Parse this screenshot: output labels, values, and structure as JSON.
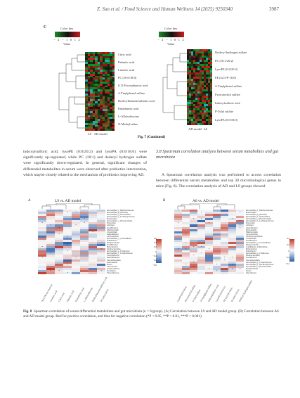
{
  "header": {
    "journal": "Z. Sun et al. / Food Science and Human Wellness 14 (2025) 9250340",
    "page": "3987"
  },
  "fig7": {
    "panel_letter": "C",
    "left": {
      "colorkey_title": "Color key",
      "colorkey_ticks": [
        "−2",
        "−1",
        "0",
        "1",
        "2"
      ],
      "colorkey_axis": "Value",
      "rows": [
        "Citric acid",
        "Palmitic acid",
        "Linoleic acid",
        "PC (16:0/18:0)",
        "8,11-Eicosadiynoic acid",
        "4-Vinylphenol sulfate",
        "Dodecylbenzenesulfonic acid",
        "Pantothenic acid",
        "L-Alloisoleucine",
        "N-Methylvaline"
      ],
      "groups": [
        "L9",
        "AD model"
      ]
    },
    "right": {
      "colorkey_title": "Color key",
      "colorkey_ticks": [
        "−2",
        "−1",
        "0",
        "1",
        "2"
      ],
      "colorkey_axis": "Value",
      "rows": [
        "Dodecyl hydrogen sulfate",
        "PC (18:1/20:2)",
        "LysoPE (0:0/20:2)",
        "PE (22:5/P-16:0)",
        "4-Vinylphenol sulfate",
        "Pyrocatechol sulfate",
        "Indoxylsulfuric acid",
        "P-Tolyl sulfate",
        "LysoPA (0:0/18:0)"
      ],
      "groups": [
        "AD model",
        "A6"
      ]
    },
    "caption": "Fig. 7 (Continued)"
  },
  "body": {
    "left_para": "indoxylsulfuric acid, lysoPE (0:0/20:2) and lysoPA (0:0/18:0) were significantly up-regulated, while PC (18:1) and dodecyl hydrogen sulfate were significantly down-regulated. In general, significant changes of differential metabolites in serum were observed after probiotics intervention, which maybe closely related to the mechanism of probiotics improving AD.",
    "section_heading": "3.8   Spearman correlation analysis between serum metabolites and gut microbiota",
    "right_para": "A Spearman correlation analysis was performed to access correlation between differential serum metabolites and top 30 microbiological genus in mice (Fig. 8). The correlation analysis of AD and L9 groups showed"
  },
  "fig8": {
    "A": {
      "letter": "A",
      "title": "L9 vs. AD model",
      "rows": [
        "unclassified_f_Muribaculaceae",
        "unclassified_k_Bacteria",
        "unclassified_f_unclassified",
        "unclassified_f_Lachnospiraceae",
        "Bacteroides",
        "unclassified_o_Bacteroidales",
        "Prevotella",
        "Alistipes",
        "Oscillibacter",
        "Muribaculum",
        "Clostridium",
        "Akkermansia",
        "Lactobacillus",
        "unclassified_o_Clostridiales",
        "Odoribacter",
        "Paraprevotella",
        "Oscillibacter",
        "Helicobacter",
        "Parabacteroides",
        "unclassified_p_Firmicutes",
        "unclassified_f_Clostridiaceae",
        "Flavonifractor",
        "Intestinimonas",
        "Faecalibaculum",
        "Duncaniella",
        "Dorea",
        "Turicibacter",
        "Anaerotruncus",
        "Roseburia",
        "Flavonifractor"
      ],
      "cols": [
        "N-(1-Deoxy-fructos)",
        "Linoleic acid",
        "Citric acid",
        "Palmitic acid",
        "Pantothenic acid",
        "L-Alloisoleucine",
        "Dodecylbenzenesulfonic acid",
        "PC (16:0/18:0)"
      ],
      "scale": [
        "0.6",
        "0.4",
        "0.2",
        "0",
        "−0.2",
        "−0.4",
        "−0.6"
      ]
    },
    "B": {
      "letter": "B",
      "title": "A6 vs. AD model",
      "rows": [
        "unclassified_f_Muribaculaceae",
        "Bacteroides",
        "unclassified_k_Bacteria",
        "unclassified_f_unclassified",
        "unclassified_o_Bacteroidales",
        "unclassified_f_Lachnospiraceae",
        "Prevotella",
        "Alistipes",
        "Akkermansia",
        "Duncaniella",
        "Muribaculum",
        "Lactobacillus",
        "Lachnoclostridium",
        "Clostridium",
        "Oscillibacter",
        "unclassified_o_Clostridiales",
        "Paraprevotella",
        "Candidatus_Arthromitus",
        "Helicobacter",
        "Odoribacter",
        "unclassified_p_Firmicutes",
        "Parabacteroides",
        "Oscillibacter",
        "Faecalibaculum",
        "unclassified_f_Clostridiaceae",
        "unclassified_f_Oscillospiraceae",
        "unclassified_o_Bacteroidales",
        "Desulfovibrio",
        "Dorea",
        "Turicibacter"
      ],
      "cols": [
        "LysoPA (0:0/18:0)",
        "Pyrocatechol sulfate",
        "P-Tolyl sulfate",
        "4-Vinylphenol sulfate",
        "Indoxylsulfuric acid",
        "LysoPE (0:0/20:2)",
        "PE (22:5/P-16:0)",
        "PC (18:1/20:2)",
        "Dodecyl hydrogen sulfate"
      ],
      "scale": [
        "0.4",
        "0.2",
        "0",
        "−0.2",
        "−0.4"
      ]
    },
    "caption_label": "Fig. 8",
    "caption_text": "Spearman correlation of serum differential metabolites and gut microbiota (n = 6/group). (A) Correlation between L9 and AD model group. (B) Correlation between A6 and AD model group. Red for positive correlation, and blue for negative correlation (*P < 0.05, **P < 0.01, ***P < 0.001)."
  },
  "colors": {
    "heat_green": "#1e8c2a",
    "heat_red": "#c81e1e",
    "heat_black": "#111111",
    "heat_teal": "#2aa7a7",
    "corr_red": "#c0392b",
    "corr_blue": "#2c5fa8"
  }
}
